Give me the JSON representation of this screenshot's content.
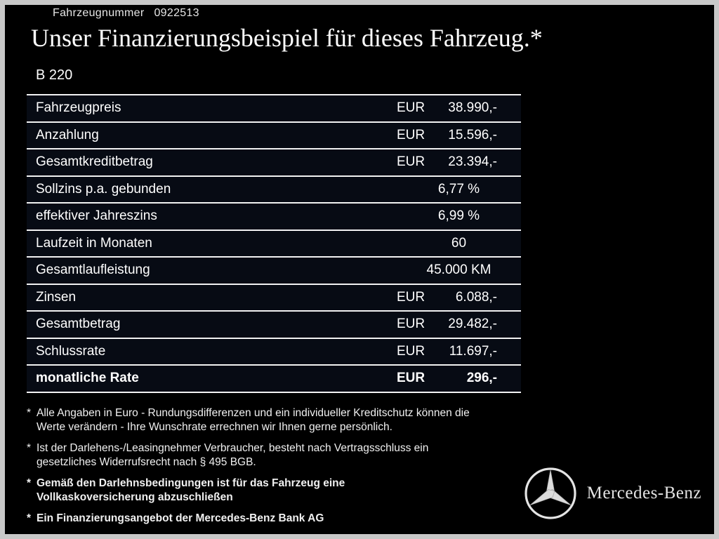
{
  "header": {
    "vehicle_number_label": "Fahrzeugnummer",
    "vehicle_number": "0922513",
    "title": "Unser Finanzierungsbeispiel für dieses Fahrzeug.*",
    "model": "B 220"
  },
  "table": {
    "rows": [
      {
        "label": "Fahrzeugpreis",
        "currency": "EUR",
        "value": "38.990,-"
      },
      {
        "label": "Anzahlung",
        "currency": "EUR",
        "value": "15.596,-"
      },
      {
        "label": "Gesamtkreditbetrag",
        "currency": "EUR",
        "value": "23.394,-"
      },
      {
        "label": "Sollzins p.a. gebunden",
        "currency": "",
        "value": "6,77 %"
      },
      {
        "label": "effektiver Jahreszins",
        "currency": "",
        "value": "6,99 %"
      },
      {
        "label": "Laufzeit in Monaten",
        "currency": "",
        "value": "60"
      },
      {
        "label": "Gesamtlaufleistung",
        "currency": "",
        "value": "45.000 KM"
      },
      {
        "label": "Zinsen",
        "currency": "EUR",
        "value": "6.088,-"
      },
      {
        "label": "Gesamtbetrag",
        "currency": "EUR",
        "value": "29.482,-"
      },
      {
        "label": "Schlussrate",
        "currency": "EUR",
        "value": "11.697,-"
      },
      {
        "label": "monatliche Rate",
        "currency": "EUR",
        "value": "296,-",
        "bold": true
      }
    ]
  },
  "footnotes": [
    {
      "marker": "*",
      "bold": false,
      "text": "Alle Angaben in Euro - Rundungsdifferenzen und ein individueller Kreditschutz können die\nWerte verändern - Ihre Wunschrate errechnen wir Ihnen gerne persönlich."
    },
    {
      "marker": "*",
      "bold": false,
      "text": "Ist der Darlehens-/Leasingnehmer Verbraucher, besteht nach Vertragsschluss ein\ngesetzliches Widerrufsrecht nach § 495 BGB."
    },
    {
      "marker": "*",
      "bold": true,
      "text": "Gemäß den Darlehnsbedingungen ist für das Fahrzeug eine\nVollkaskoversicherung abzuschließen"
    },
    {
      "marker": "*",
      "bold": true,
      "text": "Ein Finanzierungsangebot der Mercedes-Benz Bank AG"
    }
  ],
  "brand": {
    "name": "Mercedes-Benz",
    "logo": "mercedes-star"
  },
  "colors": {
    "background": "#000000",
    "frame": "#c8c8c8",
    "text": "#ffffff",
    "divider": "#f2f2f2",
    "row_background": "#070b14"
  }
}
